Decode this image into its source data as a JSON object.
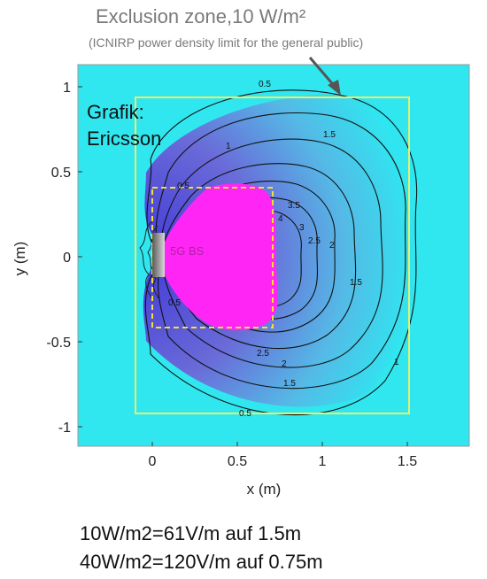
{
  "header": {
    "title": "Exclusion zone,10 W/m²",
    "subtitle": "(ICNIRP power density limit for the general public)"
  },
  "chart_data": {
    "type": "contour",
    "xlabel": "x (m)",
    "ylabel": "y (m)",
    "xlim": [
      -0.45,
      1.9
    ],
    "ylim": [
      -1.12,
      1.1
    ],
    "xticks": [
      0,
      0.5,
      1,
      1.5
    ],
    "xtick_labels": [
      "0",
      "0.5",
      "1",
      "1.5"
    ],
    "yticks": [
      1,
      0.5,
      0,
      -0.5,
      -1
    ],
    "ytick_labels": [
      "1",
      "0.5",
      "0",
      "-0.5",
      "-1"
    ],
    "overlay_text": [
      "Grafik:",
      "Ericsson"
    ],
    "source_label": "5G BS",
    "contour_levels": [
      0.5,
      1,
      1.5,
      2,
      2.5,
      3,
      3.5,
      4
    ],
    "contour_labels": [
      "0.5",
      "1",
      "1.5",
      "2",
      "2.5",
      "3",
      "3.5",
      "4"
    ],
    "exclusion_zone_10W": {
      "x": [
        -0.1,
        1.5
      ],
      "y": [
        -0.92,
        0.93
      ]
    },
    "exclusion_zone_40W": {
      "x": [
        0,
        0.7
      ],
      "y": [
        -0.4,
        0.42
      ]
    },
    "colors": {
      "background": "#30e7f0",
      "core": "#ff26f5",
      "zone": "#e8f06a"
    }
  },
  "footer": {
    "line1": "10W/m2=61V/m  auf 1.5m",
    "line2": "40W/m2=120V/m auf 0.75m"
  }
}
